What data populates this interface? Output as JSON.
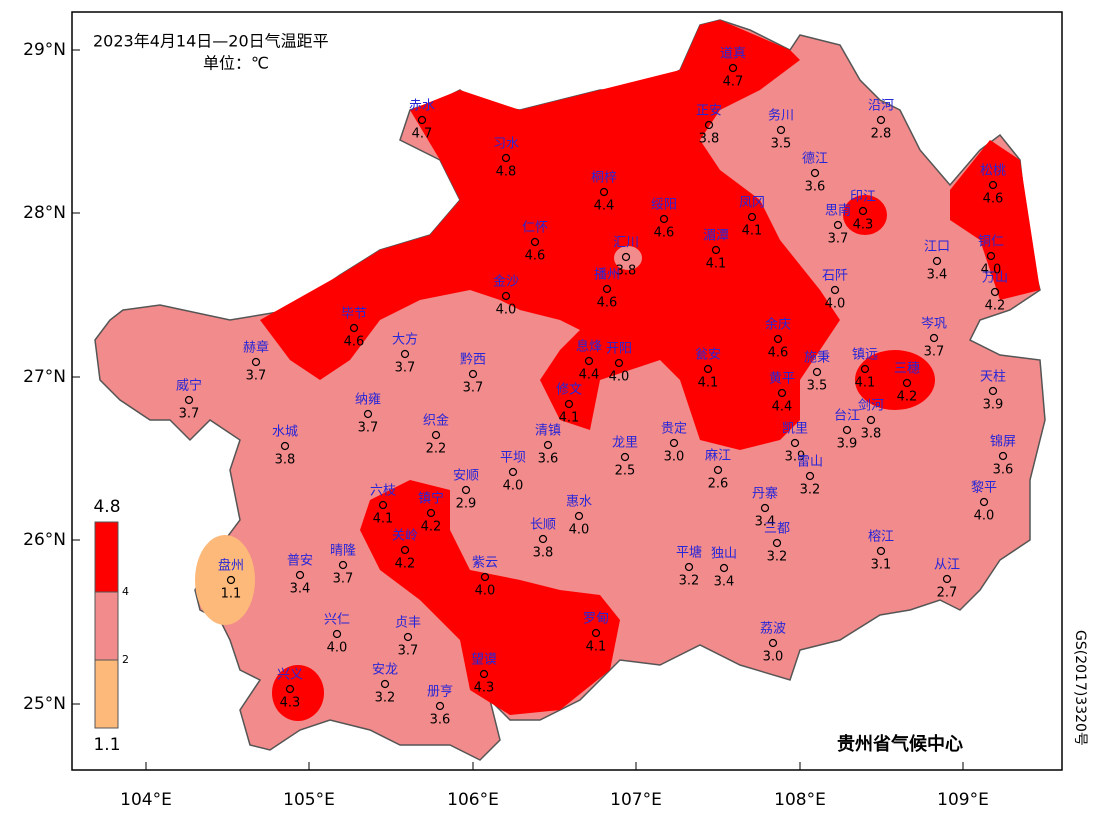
{
  "title": "2023年4月14日—20日气温距平",
  "unit": "单位：℃",
  "x_labels": [
    "104°E",
    "105°E",
    "106°E",
    "107°E",
    "108°E",
    "109°E"
  ],
  "y_labels": [
    "29°N",
    "28°N",
    "27°N",
    "26°N",
    "25°N"
  ],
  "legend": {
    "max": "4.8",
    "mid_high": "4",
    "mid_low": "2",
    "min": "1.1"
  },
  "stations": [
    {
      "name": "赤水",
      "value": "4.7"
    },
    {
      "name": "道真",
      "value": "4.7"
    },
    {
      "name": "正安",
      "value": "3.8"
    },
    {
      "name": "务川",
      "value": "3.5"
    },
    {
      "name": "沿河",
      "value": "2.8"
    },
    {
      "name": "习水",
      "value": "4.8"
    },
    {
      "name": "桐梓",
      "value": "4.4"
    },
    {
      "name": "绥阳",
      "value": "4.6"
    },
    {
      "name": "凤冈",
      "value": "4.1"
    },
    {
      "name": "德江",
      "value": "3.6"
    },
    {
      "name": "思南",
      "value": "3.7"
    },
    {
      "name": "印江",
      "value": "4.3"
    },
    {
      "name": "松桃",
      "value": "4.6"
    },
    {
      "name": "铜仁",
      "value": "4.0"
    },
    {
      "name": "江口",
      "value": "3.4"
    },
    {
      "name": "万山",
      "value": "4.2"
    },
    {
      "name": "仁怀",
      "value": "4.6"
    },
    {
      "name": "汇川",
      "value": "3.8"
    },
    {
      "name": "湄潭",
      "value": "4.1"
    },
    {
      "name": "播州",
      "value": "4.6"
    },
    {
      "name": "金沙",
      "value": "4.0"
    },
    {
      "name": "石阡",
      "value": "4.0"
    },
    {
      "name": "毕节",
      "value": "4.6"
    },
    {
      "name": "大方",
      "value": "3.7"
    },
    {
      "name": "黔西",
      "value": "3.7"
    },
    {
      "name": "赫章",
      "value": "3.7"
    },
    {
      "name": "息烽",
      "value": "4.4"
    },
    {
      "name": "开阳",
      "value": "4.0"
    },
    {
      "name": "余庆",
      "value": "4.6"
    },
    {
      "name": "施秉",
      "value": "3.5"
    },
    {
      "name": "镇远",
      "value": "4.1"
    },
    {
      "name": "三穗",
      "value": "4.2"
    },
    {
      "name": "岑巩",
      "value": "3.7"
    },
    {
      "name": "天柱",
      "value": "3.9"
    },
    {
      "name": "瓮安",
      "value": "4.1"
    },
    {
      "name": "黄平",
      "value": "4.4"
    },
    {
      "name": "威宁",
      "value": "3.7"
    },
    {
      "name": "纳雍",
      "value": "3.7"
    },
    {
      "name": "修文",
      "value": "4.1"
    },
    {
      "name": "织金",
      "value": "2.2"
    },
    {
      "name": "水城",
      "value": "3.8"
    },
    {
      "name": "清镇",
      "value": "3.6"
    },
    {
      "name": "台江",
      "value": "3.9"
    },
    {
      "name": "剑河",
      "value": "3.8"
    },
    {
      "name": "凯里",
      "value": "3.9"
    },
    {
      "name": "贵定",
      "value": "3.0"
    },
    {
      "name": "龙里",
      "value": "2.5"
    },
    {
      "name": "锦屏",
      "value": "3.6"
    },
    {
      "name": "雷山",
      "value": "3.2"
    },
    {
      "name": "麻江",
      "value": "2.6"
    },
    {
      "name": "平坝",
      "value": "4.0"
    },
    {
      "name": "安顺",
      "value": "2.9"
    },
    {
      "name": "六枝",
      "value": "4.1"
    },
    {
      "name": "镇宁",
      "value": "4.2"
    },
    {
      "name": "长顺",
      "value": "3.8"
    },
    {
      "name": "惠水",
      "value": "4.0"
    },
    {
      "name": "丹寨",
      "value": "3.4"
    },
    {
      "name": "三都",
      "value": "3.2"
    },
    {
      "name": "黎平",
      "value": "4.0"
    },
    {
      "name": "榕江",
      "value": "3.1"
    },
    {
      "name": "从江",
      "value": "2.7"
    },
    {
      "name": "关岭",
      "value": "4.2"
    },
    {
      "name": "紫云",
      "value": "4.0"
    },
    {
      "name": "晴隆",
      "value": "3.7"
    },
    {
      "name": "普安",
      "value": "3.4"
    },
    {
      "name": "盘州",
      "value": "1.1"
    },
    {
      "name": "平塘",
      "value": "3.2"
    },
    {
      "name": "独山",
      "value": "3.4"
    },
    {
      "name": "荔波",
      "value": "3.0"
    },
    {
      "name": "罗甸",
      "value": "4.1"
    },
    {
      "name": "兴仁",
      "value": "4.0"
    },
    {
      "name": "贞丰",
      "value": "3.7"
    },
    {
      "name": "安龙",
      "value": "3.2"
    },
    {
      "name": "兴义",
      "value": "4.3"
    },
    {
      "name": "望谟",
      "value": "4.3"
    },
    {
      "name": "册亨",
      "value": "3.6"
    }
  ],
  "credit": "贵州省气候中心",
  "map_number": "GS(2017)3320号"
}
